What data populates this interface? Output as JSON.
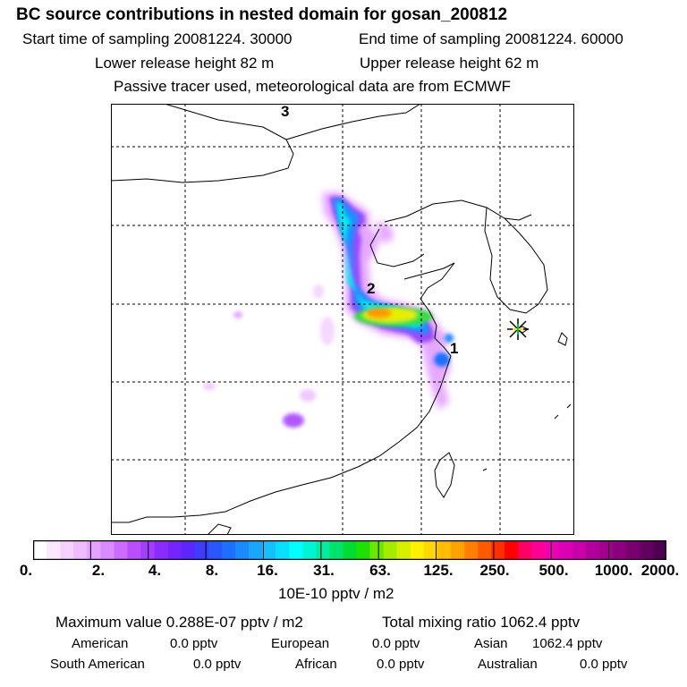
{
  "header": {
    "title": "BC  source contributions in nested domain for gosan_200812",
    "start_time": "Start time of sampling 20081224. 30000",
    "end_time": "End time of sampling 20081224. 60000",
    "lower_height": "Lower release height   82 m",
    "upper_height": "Upper release height   62 m",
    "tracer_note": "Passive tracer used, meteorological data are from ECMWF"
  },
  "chart_data": {
    "type": "heatmap",
    "title": "BC  source contributions in nested domain for gosan_200812",
    "colorbar_label": "10E-10 pptv / m2",
    "colorbar_ticks": [
      "0.",
      "2.",
      "4.",
      "8.",
      "16.",
      "31.",
      "63.",
      "125.",
      "250.",
      "500.",
      "1000.",
      "2000."
    ],
    "colorbar_colors": [
      "#ffffff",
      "#fbe8ff",
      "#f5d2ff",
      "#eebcff",
      "#e4a3ff",
      "#d88aff",
      "#cc6cff",
      "#b94eff",
      "#a23cff",
      "#8a2cff",
      "#7424ff",
      "#5b26ff",
      "#3f3cff",
      "#2b55ff",
      "#1f6fff",
      "#1a8aff",
      "#18a6ff",
      "#12c2ff",
      "#0adfff",
      "#00ffff",
      "#00f5d4",
      "#00eda2",
      "#00e36a",
      "#00dc32",
      "#1fe000",
      "#6ae600",
      "#a6ec00",
      "#d6f000",
      "#fff000",
      "#ffd800",
      "#ffbe00",
      "#ffa300",
      "#ff8000",
      "#ff5a00",
      "#ff2f00",
      "#ff0000",
      "#ff0064",
      "#ff0096",
      "#f000b4",
      "#dc00b4",
      "#c800aa",
      "#b4009b",
      "#a0008c",
      "#8c007d",
      "#78006e",
      "#64005f",
      "#500050"
    ],
    "trajectory_labels": [
      "1",
      "2",
      "3"
    ],
    "receptor_marker": "asterisk"
  },
  "footer": {
    "max_value": "Maximum value  0.288E-07 pptv / m2",
    "total_mixing": "Total mixing ratio     1062.4 pptv",
    "american_label": "American",
    "american_value": "0.0 pptv",
    "european_label": "European",
    "european_value": "0.0 pptv",
    "asian_label": "Asian",
    "asian_value": "1062.4 pptv",
    "south_american_label": "South American",
    "south_american_value": "0.0 pptv",
    "african_label": "African",
    "african_value": "0.0 pptv",
    "australian_label": "Australian",
    "australian_value": "0.0 pptv"
  }
}
